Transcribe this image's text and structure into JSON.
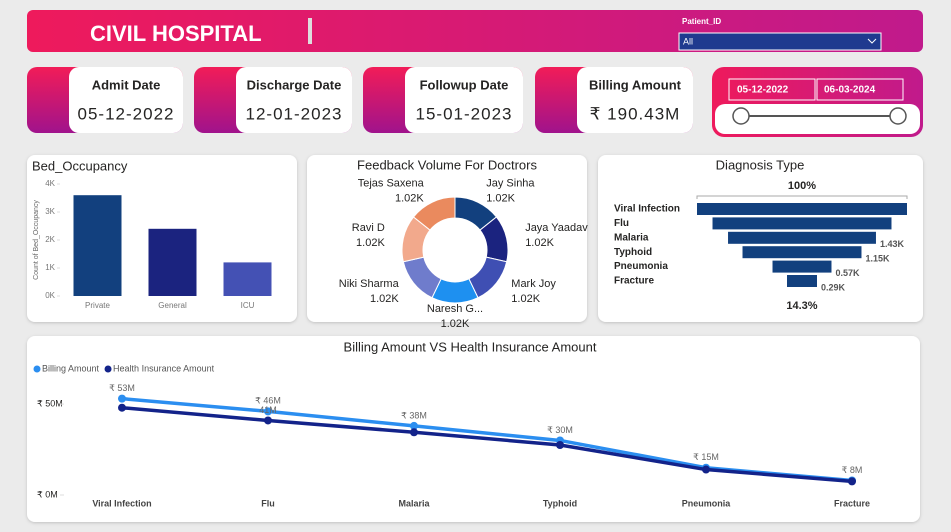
{
  "header": {
    "title": "CIVIL HOSPITAL",
    "filter_label": "Patient_ID",
    "filter_value": "All"
  },
  "kpis": [
    {
      "label": "Admit Date",
      "value": "05-12-2022"
    },
    {
      "label": "Discharge Date",
      "value": "12-01-2023"
    },
    {
      "label": "Followup Date",
      "value": "15-01-2023"
    },
    {
      "label": "Billing Amount",
      "value": "₹ 190.43M"
    }
  ],
  "date_slicer": {
    "start": "05-12-2022",
    "end": "06-03-2024"
  },
  "chart_data": [
    {
      "type": "bar",
      "title": "Bed_Occupancy",
      "y_label": "Count of Bed_Occupancy",
      "categories": [
        "Private",
        "General",
        "ICU"
      ],
      "values": [
        3600,
        2400,
        1200
      ],
      "colors": [
        "#12407e",
        "#1b237f",
        "#4451b4"
      ],
      "ylim": [
        0,
        4000
      ],
      "yticks": [
        {
          "value": 0,
          "label": "0K"
        },
        {
          "value": 1000,
          "label": "1K"
        },
        {
          "value": 2000,
          "label": "2K"
        },
        {
          "value": 3000,
          "label": "3K"
        },
        {
          "value": 4000,
          "label": "4K"
        }
      ]
    },
    {
      "type": "pie",
      "title": "Feedback Volume For Doctrors",
      "categories": [
        "Jay Sinha",
        "Jaya Yaadav",
        "Mark Joy",
        "Naresh G...",
        "Niki Sharma",
        "Ravi D",
        "Tejas Saxena"
      ],
      "values": [
        1020,
        1020,
        1020,
        1020,
        1020,
        1020,
        1020
      ],
      "value_labels": [
        "1.02K",
        "1.02K",
        "1.02K",
        "1.02K",
        "1.02K",
        "1.02K",
        "1.02K"
      ],
      "colors": [
        "#12407e",
        "#1b237f",
        "#3f4fb3",
        "#1e90f0",
        "#6f7ccc",
        "#f2a98c",
        "#ea8a5e"
      ]
    },
    {
      "type": "funnel",
      "title": "Diagnosis Type",
      "top_label": "100%",
      "bottom_label": "14.3%",
      "categories": [
        "Viral Infection",
        "Flu",
        "Malaria",
        "Typhoid",
        "Pneumonia",
        "Fracture"
      ],
      "values": [
        2030,
        1730,
        1430,
        1150,
        570,
        290
      ],
      "value_labels": [
        null,
        null,
        "1.43K",
        "1.15K",
        "0.57K",
        "0.29K"
      ],
      "color": "#12407e"
    },
    {
      "type": "line",
      "title": "Billing Amount VS Health Insurance Amount",
      "categories": [
        "Viral Infection",
        "Flu",
        "Malaria",
        "Typhoid",
        "Pneumonia",
        "Fracture"
      ],
      "series": [
        {
          "name": "Billing Amount",
          "color": "#2b8ef0",
          "values": [
            53,
            46,
            38,
            30,
            15,
            8
          ],
          "value_labels": [
            "₹ 53M",
            "₹ 46M",
            "₹ 38M",
            "₹ 30M",
            "₹ 15M",
            "₹ 8M"
          ]
        },
        {
          "name": "Health Insurance Amount",
          "color": "#13238a",
          "values": [
            48,
            41,
            34.5,
            27.5,
            14,
            7.5
          ],
          "value_labels": [
            null,
            "41M",
            null,
            null,
            null,
            null
          ]
        }
      ],
      "ylim": [
        0,
        55
      ],
      "yticks": [
        {
          "value": 0,
          "label": "₹ 0M"
        },
        {
          "value": 50,
          "label": "₹ 50M"
        }
      ]
    }
  ]
}
